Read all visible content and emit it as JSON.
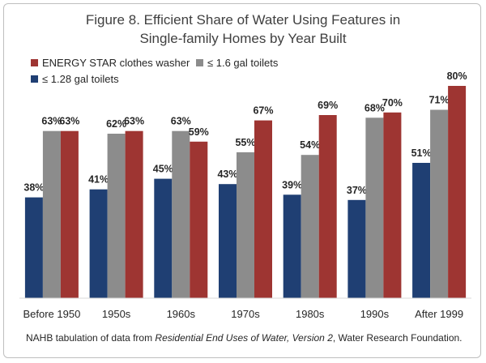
{
  "chart_data": {
    "type": "bar",
    "title_line1": "Figure 8.  Efficient Share of Water Using Features in",
    "title_line2": "Single-family Homes by Year Built",
    "categories": [
      "Before 1950",
      "1950s",
      "1960s",
      "1970s",
      "1980s",
      "1990s",
      "After 1999"
    ],
    "series": [
      {
        "name": "≤ 1.28 gal toilets",
        "color": "#1f3f73",
        "values": [
          38,
          41,
          45,
          43,
          39,
          37,
          51
        ]
      },
      {
        "name": "≤ 1.6 gal toilets",
        "color": "#8c8c8c",
        "values": [
          63,
          62,
          63,
          55,
          54,
          68,
          71
        ]
      },
      {
        "name": "ENERGY STAR clothes washer",
        "color": "#9e3532",
        "values": [
          63,
          63,
          59,
          67,
          69,
          70,
          80
        ]
      }
    ],
    "value_suffix": "%",
    "ylim": [
      0,
      80
    ],
    "xlabel": "",
    "ylabel": "",
    "legend_position": "top-left"
  },
  "source": {
    "prefix": "NAHB tabulation of data from ",
    "italic": "Residential End Uses of Water, Version 2",
    "suffix": ", Water Research Foundation."
  }
}
